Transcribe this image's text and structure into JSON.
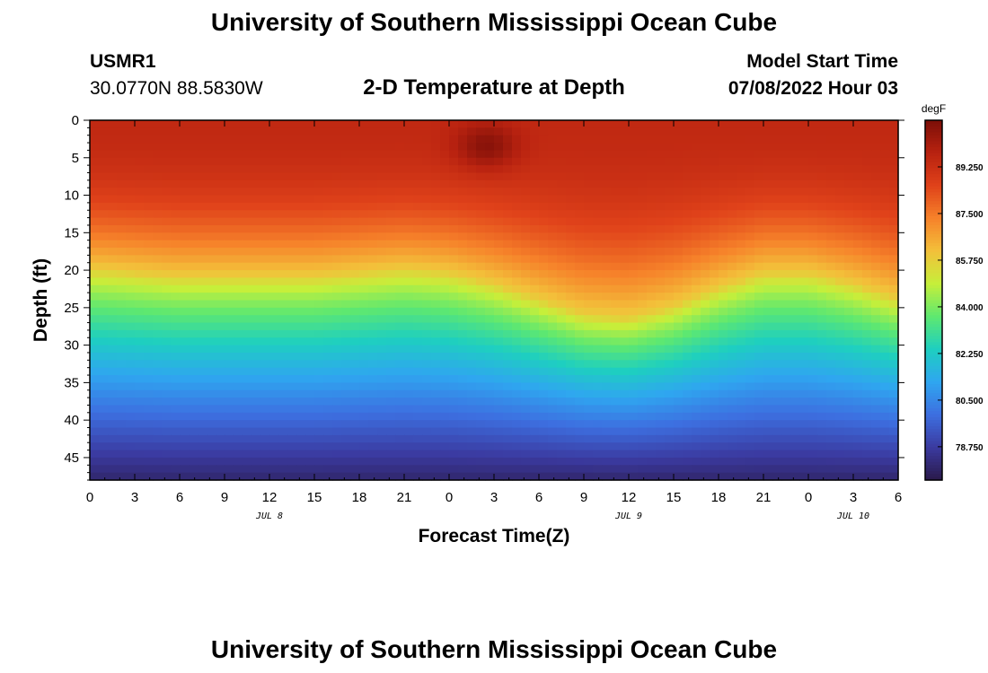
{
  "page": {
    "title": "University of Southern Mississippi Ocean Cube",
    "title_bottom": "University of Southern Mississippi Ocean Cube",
    "station_id": "USMR1",
    "coords": "30.0770N  88.5830W",
    "subtitle": "2-D Temperature at Depth",
    "model_start_label": "Model Start Time",
    "model_start_value": "07/08/2022 Hour 03"
  },
  "chart_data": {
    "type": "heatmap",
    "title": "2-D Temperature at Depth",
    "xlabel": "Forecast Time(Z)",
    "ylabel": "Depth (ft)",
    "x_range_hours": [
      0,
      54
    ],
    "y_range_ft": [
      0,
      48
    ],
    "x_ticks": [
      {
        "h": 0,
        "label": "0"
      },
      {
        "h": 3,
        "label": "3"
      },
      {
        "h": 6,
        "label": "6"
      },
      {
        "h": 9,
        "label": "9"
      },
      {
        "h": 12,
        "label": "12"
      },
      {
        "h": 15,
        "label": "15"
      },
      {
        "h": 18,
        "label": "18"
      },
      {
        "h": 21,
        "label": "21"
      },
      {
        "h": 24,
        "label": "0"
      },
      {
        "h": 27,
        "label": "3"
      },
      {
        "h": 30,
        "label": "6"
      },
      {
        "h": 33,
        "label": "9"
      },
      {
        "h": 36,
        "label": "12"
      },
      {
        "h": 39,
        "label": "15"
      },
      {
        "h": 42,
        "label": "18"
      },
      {
        "h": 45,
        "label": "21"
      },
      {
        "h": 48,
        "label": "0"
      },
      {
        "h": 51,
        "label": "3"
      },
      {
        "h": 54,
        "label": "6"
      }
    ],
    "date_labels": [
      {
        "h": 12,
        "label": "JUL 8"
      },
      {
        "h": 36,
        "label": "JUL 9"
      },
      {
        "h": 51,
        "label": "JUL 10"
      }
    ],
    "y_ticks": [
      0,
      5,
      10,
      15,
      20,
      25,
      30,
      35,
      40,
      45
    ],
    "colorbar": {
      "unit": "degF",
      "min": 77.5,
      "max": 91.0,
      "ticks": [
        "89.250",
        "87.500",
        "85.750",
        "84.000",
        "82.250",
        "80.500",
        "78.750"
      ],
      "tick_values": [
        89.25,
        87.5,
        85.75,
        84.0,
        82.25,
        80.5,
        78.75
      ],
      "colors": [
        "#2a1a4a",
        "#3b3aa0",
        "#3d6fe0",
        "#2fa6f0",
        "#1ecfc0",
        "#5ee870",
        "#c6ef3a",
        "#f3c03a",
        "#f6822a",
        "#e0421a",
        "#b82210",
        "#7c0f08"
      ]
    },
    "isotherm_85F_depth_ft": {
      "hours": [
        0,
        3,
        6,
        9,
        12,
        15,
        18,
        21,
        24,
        27,
        30,
        33,
        36,
        39,
        42,
        45,
        48,
        51,
        54
      ],
      "depth": [
        20,
        20.5,
        21,
        21,
        21,
        21,
        20.5,
        20,
        20.5,
        22,
        24,
        26,
        26.5,
        25,
        22.5,
        20.5,
        20.5,
        22,
        24
      ]
    },
    "surface_temp_F": 89.5,
    "bottom_temp_F": 78.0,
    "warm_spot": {
      "hour": 26.5,
      "depth": 3.5,
      "temp": 90.8
    }
  }
}
